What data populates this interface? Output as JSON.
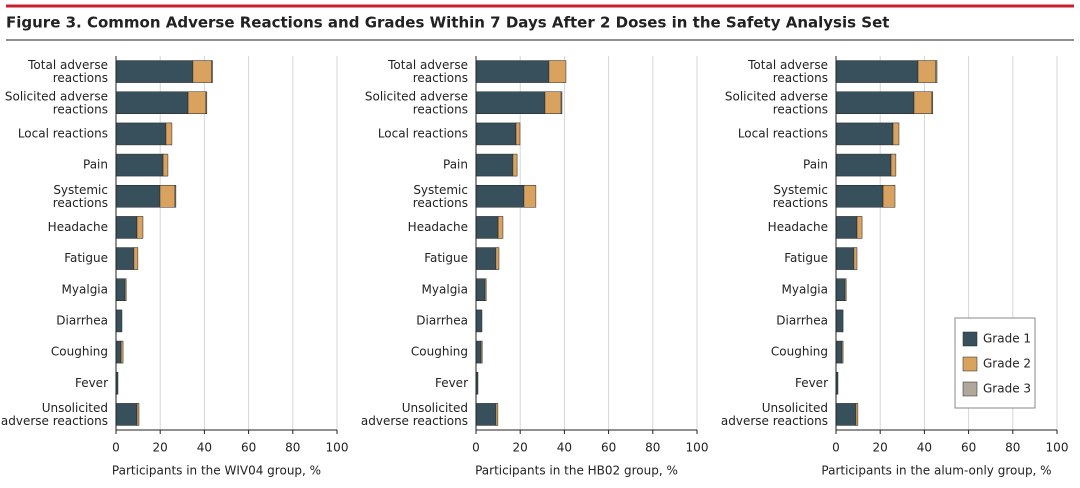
{
  "title": "Figure 3. Common Adverse Reactions and Grades Within 7 Days After 2 Doses in the Safety Analysis Set",
  "chart_data": [
    {
      "type": "bar",
      "orientation": "horizontal",
      "stacked": true,
      "grid": true,
      "x_label": "Participants in the WIV04 group, %",
      "categories": [
        "Total adverse\nreactions",
        "Solicited adverse\nreactions",
        "Local reactions",
        "Pain",
        "Systemic\nreactions",
        "Headache",
        "Fatigue",
        "Myalgia",
        "Diarrhea",
        "Coughing",
        "Fever",
        "Unsolicited\nadverse reactions"
      ],
      "series": [
        {
          "color": "#37505c",
          "values": [
            34.8,
            32.6,
            22.6,
            21.3,
            19.9,
            9.5,
            8.1,
            4.1,
            2.7,
            2.3,
            0.9,
            9.5
          ]
        },
        {
          "color": "#d9a35f",
          "values": [
            8.5,
            8.1,
            2.7,
            2.2,
            6.8,
            2.7,
            1.8,
            0.5,
            0,
            0.9,
            0,
            0.9
          ]
        },
        {
          "color": "#b0a89a",
          "values": [
            0.4,
            0.4,
            0,
            0,
            0.4,
            0,
            0,
            0,
            0,
            0,
            0,
            0
          ]
        }
      ],
      "xlim": [
        0,
        100
      ],
      "xticks": [
        0,
        20,
        40,
        60,
        80,
        100
      ]
    },
    {
      "type": "bar",
      "orientation": "horizontal",
      "stacked": true,
      "grid": true,
      "x_label": "Participants in the HB02 group, %",
      "categories": [
        "Total adverse\nreactions",
        "Solicited adverse\nreactions",
        "Local reactions",
        "Pain",
        "Systemic\nreactions",
        "Headache",
        "Fatigue",
        "Myalgia",
        "Diarrhea",
        "Coughing",
        "Fever",
        "Unsolicited\nadverse reactions"
      ],
      "series": [
        {
          "color": "#37505c",
          "values": [
            33.0,
            31.2,
            18.1,
            16.7,
            21.7,
            10.0,
            9.0,
            4.1,
            2.7,
            2.3,
            0.9,
            9.0
          ]
        },
        {
          "color": "#d9a35f",
          "values": [
            7.7,
            7.3,
            1.8,
            1.9,
            5.4,
            2.2,
            1.4,
            0.5,
            0,
            0.5,
            0,
            0.9
          ]
        },
        {
          "color": "#b0a89a",
          "values": [
            0,
            0.4,
            0,
            0,
            0,
            0,
            0,
            0,
            0,
            0,
            0,
            0
          ]
        }
      ],
      "xlim": [
        0,
        100
      ],
      "xticks": [
        0,
        20,
        40,
        60,
        80,
        100
      ]
    },
    {
      "type": "bar",
      "orientation": "horizontal",
      "stacked": true,
      "grid": true,
      "x_label": "Participants in the alum-only group, %",
      "categories": [
        "Total adverse\nreactions",
        "Solicited adverse\nreactions",
        "Local reactions",
        "Pain",
        "Systemic\nreactions",
        "Headache",
        "Fatigue",
        "Myalgia",
        "Diarrhea",
        "Coughing",
        "Fever",
        "Unsolicited\nadverse reactions"
      ],
      "series": [
        {
          "name": "Grade 1",
          "color": "#37505c",
          "values": [
            37.1,
            35.3,
            25.8,
            24.9,
            21.3,
            9.5,
            8.1,
            4.1,
            3.2,
            2.7,
            0.9,
            9.0
          ]
        },
        {
          "name": "Grade 2",
          "color": "#d9a35f",
          "values": [
            8.1,
            8.1,
            2.7,
            2.2,
            5.4,
            2.3,
            1.4,
            0.5,
            0,
            0.5,
            0,
            0.9
          ]
        },
        {
          "name": "Grade 3",
          "color": "#b0a89a",
          "values": [
            0.5,
            0.4,
            0,
            0,
            0,
            0,
            0,
            0,
            0,
            0,
            0,
            0
          ]
        }
      ],
      "xlim": [
        0,
        100
      ],
      "xticks": [
        0,
        20,
        40,
        60,
        80,
        100
      ],
      "legend": "lower right"
    }
  ]
}
